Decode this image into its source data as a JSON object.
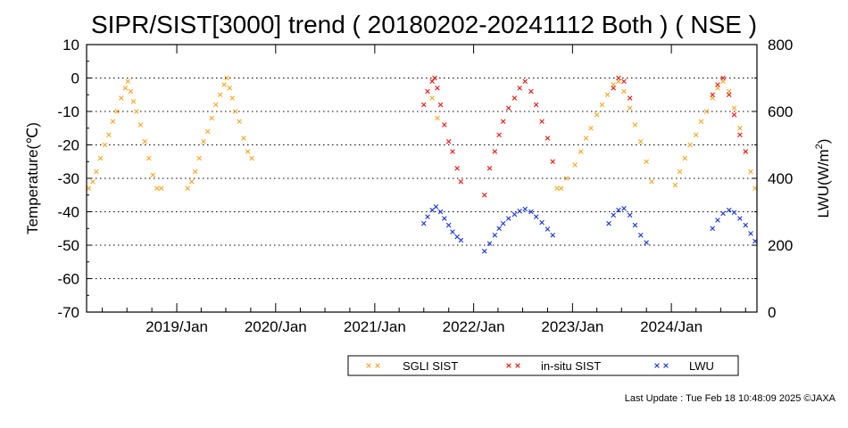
{
  "chart_data": {
    "type": "scatter",
    "title": "SIPR/SIST[3000] trend ( 20180202-20241112 Both ) ( NSE )",
    "ylabel": "Temperature(℃)",
    "y2label_main": "LWU(W/m",
    "y2label_sup": "2",
    "y2label_end": ")",
    "xlim": [
      "2018-02-02",
      "2024-11-12"
    ],
    "ylim": [
      -70,
      10
    ],
    "y2lim": [
      0,
      800
    ],
    "grid": "horizontal dotted",
    "x_ticks": [
      {
        "date": "2019-01-01",
        "label": "2019/Jan"
      },
      {
        "date": "2020-01-01",
        "label": "2020/Jan"
      },
      {
        "date": "2021-01-01",
        "label": "2021/Jan"
      },
      {
        "date": "2022-01-01",
        "label": "2022/Jan"
      },
      {
        "date": "2023-01-01",
        "label": "2023/Jan"
      },
      {
        "date": "2024-01-01",
        "label": "2024/Jan"
      }
    ],
    "y_ticks": [
      "10",
      "0",
      "-10",
      "-20",
      "-30",
      "-40",
      "-50",
      "-60",
      "-70"
    ],
    "y2_ticks": [
      "800",
      "600",
      "400",
      "200",
      "0"
    ],
    "legend_position": "bottom",
    "series": [
      {
        "name": "SGLI SIST",
        "color": "#f5a623",
        "axis": "left",
        "points": [
          [
            "2018-02-10",
            -33
          ],
          [
            "2018-02-25",
            -31
          ],
          [
            "2018-03-10",
            -28
          ],
          [
            "2018-03-25",
            -24
          ],
          [
            "2018-04-10",
            -20
          ],
          [
            "2018-04-25",
            -17
          ],
          [
            "2018-05-10",
            -13
          ],
          [
            "2018-05-25",
            -10
          ],
          [
            "2018-06-10",
            -6
          ],
          [
            "2018-06-25",
            -3
          ],
          [
            "2018-07-05",
            -1
          ],
          [
            "2018-07-15",
            -4
          ],
          [
            "2018-07-25",
            -7
          ],
          [
            "2018-08-05",
            -10
          ],
          [
            "2018-08-20",
            -14
          ],
          [
            "2018-09-05",
            -19
          ],
          [
            "2018-09-20",
            -24
          ],
          [
            "2018-10-05",
            -29
          ],
          [
            "2018-10-20",
            -33
          ],
          [
            "2018-11-05",
            -33
          ],
          [
            "2019-02-10",
            -33
          ],
          [
            "2019-02-25",
            -31
          ],
          [
            "2019-03-10",
            -28
          ],
          [
            "2019-03-25",
            -24
          ],
          [
            "2019-04-10",
            -19
          ],
          [
            "2019-04-25",
            -16
          ],
          [
            "2019-05-10",
            -12
          ],
          [
            "2019-05-25",
            -8
          ],
          [
            "2019-06-10",
            -5
          ],
          [
            "2019-06-25",
            -2
          ],
          [
            "2019-07-05",
            0
          ],
          [
            "2019-07-15",
            -3
          ],
          [
            "2019-07-25",
            -6
          ],
          [
            "2019-08-05",
            -10
          ],
          [
            "2019-08-20",
            -13
          ],
          [
            "2019-09-05",
            -18
          ],
          [
            "2019-09-20",
            -22
          ],
          [
            "2019-10-05",
            -24
          ],
          [
            "2021-08-01",
            -6
          ],
          [
            "2021-08-20",
            -12
          ],
          [
            "2022-11-05",
            -33
          ],
          [
            "2022-11-20",
            -33
          ],
          [
            "2022-12-10",
            -30
          ],
          [
            "2023-01-10",
            -26
          ],
          [
            "2023-02-01",
            -22
          ],
          [
            "2023-02-20",
            -18
          ],
          [
            "2023-03-10",
            -15
          ],
          [
            "2023-04-01",
            -11
          ],
          [
            "2023-04-20",
            -8
          ],
          [
            "2023-05-10",
            -5
          ],
          [
            "2023-06-01",
            -2
          ],
          [
            "2023-06-20",
            -1
          ],
          [
            "2023-07-10",
            -4
          ],
          [
            "2023-08-01",
            -9
          ],
          [
            "2023-08-20",
            -14
          ],
          [
            "2023-09-10",
            -19
          ],
          [
            "2023-10-01",
            -25
          ],
          [
            "2023-10-20",
            -31
          ],
          [
            "2024-01-15",
            -32
          ],
          [
            "2024-02-01",
            -28
          ],
          [
            "2024-02-20",
            -24
          ],
          [
            "2024-03-10",
            -20
          ],
          [
            "2024-04-01",
            -17
          ],
          [
            "2024-04-20",
            -13
          ],
          [
            "2024-05-10",
            -10
          ],
          [
            "2024-06-01",
            -6
          ],
          [
            "2024-06-20",
            -3
          ],
          [
            "2024-07-10",
            -1
          ],
          [
            "2024-08-01",
            -4
          ],
          [
            "2024-08-20",
            -9
          ],
          [
            "2024-09-10",
            -15
          ],
          [
            "2024-10-01",
            -22
          ],
          [
            "2024-10-20",
            -28
          ],
          [
            "2024-11-05",
            -33
          ]
        ]
      },
      {
        "name": "in-situ SIST",
        "color": "#e8130c",
        "axis": "left",
        "points": [
          [
            "2021-07-01",
            -8
          ],
          [
            "2021-07-15",
            -4
          ],
          [
            "2021-08-01",
            -1
          ],
          [
            "2021-08-10",
            0
          ],
          [
            "2021-08-20",
            -3
          ],
          [
            "2021-09-01",
            -8
          ],
          [
            "2021-09-15",
            -14
          ],
          [
            "2021-10-01",
            -19
          ],
          [
            "2021-10-15",
            -22
          ],
          [
            "2021-11-01",
            -27
          ],
          [
            "2021-11-15",
            -31
          ],
          [
            "2022-02-10",
            -35
          ],
          [
            "2022-03-01",
            -27
          ],
          [
            "2022-03-20",
            -22
          ],
          [
            "2022-04-05",
            -17
          ],
          [
            "2022-04-20",
            -13
          ],
          [
            "2022-05-10",
            -9
          ],
          [
            "2022-06-01",
            -6
          ],
          [
            "2022-06-20",
            -3
          ],
          [
            "2022-07-10",
            -1
          ],
          [
            "2022-08-01",
            -4
          ],
          [
            "2022-08-20",
            -8
          ],
          [
            "2022-09-10",
            -13
          ],
          [
            "2022-10-01",
            -18
          ],
          [
            "2022-10-20",
            -25
          ],
          [
            "2023-06-01",
            -3
          ],
          [
            "2023-06-20",
            0
          ],
          [
            "2023-07-10",
            -1
          ],
          [
            "2023-08-01",
            -6
          ],
          [
            "2024-06-01",
            -5
          ],
          [
            "2024-06-20",
            -2
          ],
          [
            "2024-07-10",
            0
          ],
          [
            "2024-08-01",
            -5
          ],
          [
            "2024-08-20",
            -11
          ],
          [
            "2024-09-10",
            -17
          ],
          [
            "2024-10-01",
            -22
          ]
        ]
      },
      {
        "name": "LWU",
        "color": "#1430d8",
        "axis": "right",
        "points": [
          [
            "2021-07-01",
            265
          ],
          [
            "2021-07-15",
            285
          ],
          [
            "2021-08-01",
            305
          ],
          [
            "2021-08-15",
            315
          ],
          [
            "2021-09-01",
            300
          ],
          [
            "2021-09-15",
            280
          ],
          [
            "2021-10-01",
            260
          ],
          [
            "2021-10-15",
            240
          ],
          [
            "2021-11-01",
            225
          ],
          [
            "2021-11-15",
            215
          ],
          [
            "2022-02-10",
            182
          ],
          [
            "2022-03-01",
            205
          ],
          [
            "2022-03-20",
            230
          ],
          [
            "2022-04-05",
            250
          ],
          [
            "2022-04-20",
            265
          ],
          [
            "2022-05-10",
            280
          ],
          [
            "2022-06-01",
            292
          ],
          [
            "2022-06-20",
            302
          ],
          [
            "2022-07-10",
            308
          ],
          [
            "2022-08-01",
            300
          ],
          [
            "2022-08-20",
            285
          ],
          [
            "2022-09-10",
            268
          ],
          [
            "2022-10-01",
            248
          ],
          [
            "2022-10-20",
            230
          ],
          [
            "2023-05-15",
            265
          ],
          [
            "2023-06-01",
            290
          ],
          [
            "2023-06-20",
            305
          ],
          [
            "2023-07-10",
            310
          ],
          [
            "2023-08-01",
            290
          ],
          [
            "2023-08-20",
            260
          ],
          [
            "2023-09-10",
            230
          ],
          [
            "2023-10-01",
            208
          ],
          [
            "2024-06-01",
            250
          ],
          [
            "2024-06-20",
            275
          ],
          [
            "2024-07-10",
            295
          ],
          [
            "2024-08-01",
            305
          ],
          [
            "2024-08-20",
            298
          ],
          [
            "2024-09-10",
            280
          ],
          [
            "2024-10-01",
            260
          ],
          [
            "2024-10-20",
            235
          ],
          [
            "2024-11-05",
            212
          ]
        ]
      }
    ]
  },
  "legend": {
    "sgli_label": "SGLI SIST",
    "insitu_label": "in-situ SIST",
    "lwu_label": "LWU"
  },
  "footer": {
    "text": "Last Update : Tue Feb 18 10:48:09 2025  ©JAXA"
  }
}
